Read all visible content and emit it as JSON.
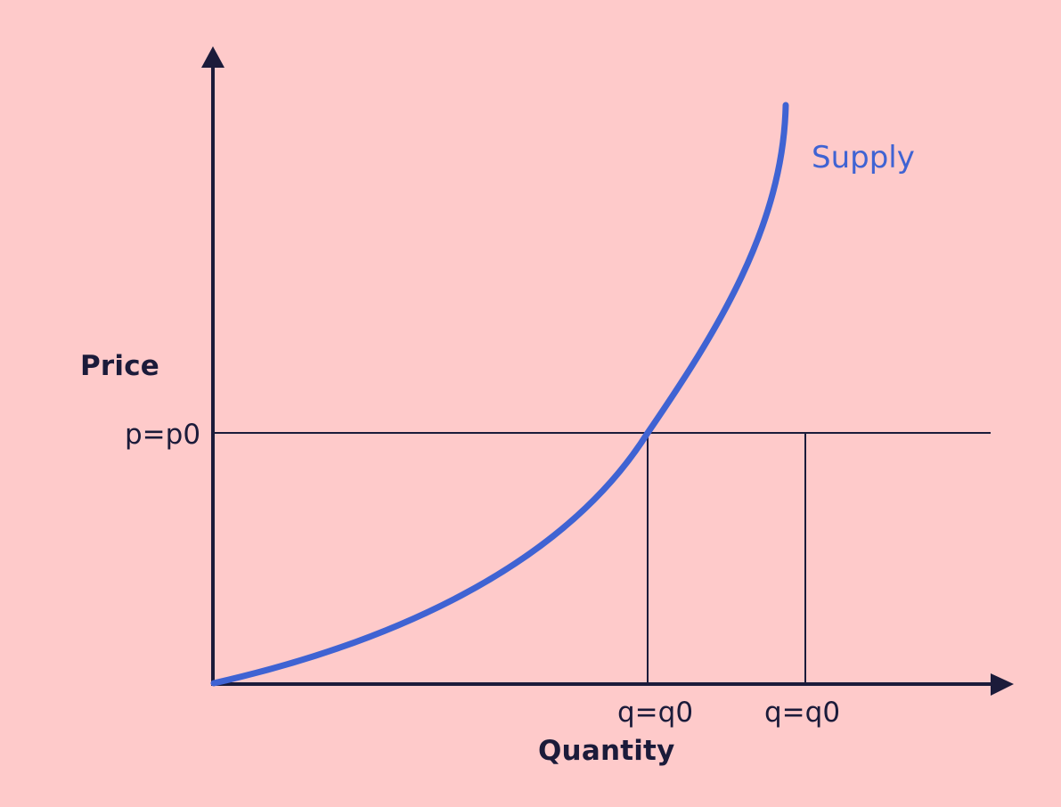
{
  "diagram": {
    "y_axis_label": "Price",
    "x_axis_label": "Quantity",
    "curve_label": "Supply",
    "price_marker": "p=p0",
    "quantity_markers": [
      "q=q0",
      "q=q0"
    ]
  },
  "colors": {
    "background": "#fecaca",
    "axis": "#1b1b3a",
    "supply_curve": "#3f63d3"
  }
}
